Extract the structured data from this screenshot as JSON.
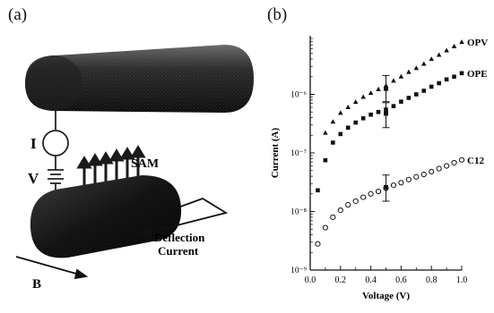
{
  "panels": {
    "a": {
      "label": "(a)"
    },
    "b": {
      "label": "(b)"
    }
  },
  "diagram": {
    "current_label": "I",
    "voltage_label": "V",
    "sam_label": "SAM",
    "deflection_label_line1": "Deflection",
    "deflection_label_line2": "Current",
    "field_label": "B"
  },
  "chart_data": {
    "type": "scatter",
    "xlabel": "Voltage (V)",
    "ylabel": "Current (A)",
    "x_scale": "linear",
    "y_scale": "log",
    "xlim": [
      0.0,
      1.0
    ],
    "ylim": [
      1e-09,
      1e-05
    ],
    "x_ticks": [
      0.0,
      0.2,
      0.4,
      0.6,
      0.8,
      1.0
    ],
    "x_tick_labels": [
      "0.0",
      "0.2",
      "0.4",
      "0.6",
      "0.8",
      "1.0"
    ],
    "y_ticks": [
      1e-09,
      1e-08,
      1e-07,
      1e-06
    ],
    "y_tick_labels": [
      "10⁻⁹",
      "10⁻⁸",
      "10⁻⁷",
      "10⁻⁶"
    ],
    "grid": false,
    "series": [
      {
        "name": "OPV",
        "marker": "triangle",
        "x": [
          0.1,
          0.15,
          0.2,
          0.25,
          0.3,
          0.35,
          0.4,
          0.45,
          0.5,
          0.55,
          0.6,
          0.65,
          0.7,
          0.75,
          0.8,
          0.85,
          0.9,
          0.95,
          1.0
        ],
        "y": [
          2.2e-07,
          3.4e-07,
          4.8e-07,
          6e-07,
          7.4e-07,
          9e-07,
          1.05e-06,
          1.22e-06,
          1.4e-06,
          1.7e-06,
          2e-06,
          2.4e-06,
          2.8e-06,
          3.3e-06,
          4e-06,
          4.7e-06,
          5.6e-06,
          6.6e-06,
          7.8e-06
        ],
        "error_bar": {
          "x": 0.5,
          "y": 1.25e-06,
          "low": 7.5e-07,
          "high": 2.1e-06
        }
      },
      {
        "name": "OPE",
        "marker": "square",
        "x": [
          0.05,
          0.1,
          0.15,
          0.2,
          0.25,
          0.3,
          0.35,
          0.4,
          0.45,
          0.5,
          0.55,
          0.6,
          0.65,
          0.7,
          0.75,
          0.8,
          0.85,
          0.9,
          0.95,
          1.0
        ],
        "y": [
          2.3e-08,
          7.5e-08,
          1.5e-07,
          2.1e-07,
          2.7e-07,
          3.3e-07,
          3.9e-07,
          4.5e-07,
          5e-07,
          5.5e-07,
          6.3e-07,
          7.5e-07,
          8.7e-07,
          1e-06,
          1.15e-06,
          1.35e-06,
          1.55e-06,
          1.8e-06,
          2e-06,
          2.3e-06
        ],
        "error_bar": {
          "x": 0.5,
          "y": 4.7e-07,
          "low": 2.7e-07,
          "high": 7.2e-07
        }
      },
      {
        "name": "C12",
        "marker": "circle-open",
        "x": [
          0.05,
          0.1,
          0.15,
          0.2,
          0.25,
          0.3,
          0.35,
          0.4,
          0.45,
          0.5,
          0.55,
          0.6,
          0.65,
          0.7,
          0.75,
          0.8,
          0.85,
          0.9,
          0.95,
          1.0
        ],
        "y": [
          2.8e-09,
          5.3e-09,
          8e-09,
          1.05e-08,
          1.3e-08,
          1.5e-08,
          1.75e-08,
          2e-08,
          2.2e-08,
          2.5e-08,
          2.8e-08,
          3.1e-08,
          3.5e-08,
          3.9e-08,
          4.3e-08,
          4.8e-08,
          5.4e-08,
          6e-08,
          6.8e-08,
          7.6e-08
        ],
        "error_bar": {
          "x": 0.5,
          "y": 2.6e-08,
          "low": 1.5e-08,
          "high": 4.2e-08
        }
      }
    ]
  }
}
